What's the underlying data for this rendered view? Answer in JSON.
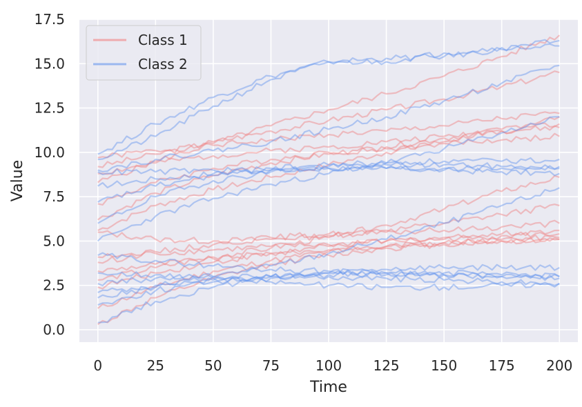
{
  "chart_data": {
    "type": "line",
    "xlabel": "Time",
    "ylabel": "Value",
    "xlim": [
      -8,
      208
    ],
    "ylim": [
      -0.7,
      17.5
    ],
    "x_ticks": [
      0,
      25,
      50,
      75,
      100,
      125,
      150,
      175,
      200
    ],
    "y_ticks": [
      0.0,
      2.5,
      5.0,
      7.5,
      10.0,
      12.5,
      15.0,
      17.5
    ],
    "y_tick_labels": [
      "0.0",
      "2.5",
      "5.0",
      "7.5",
      "10.0",
      "12.5",
      "15.0",
      "17.5"
    ],
    "grid": true,
    "legend_position": "top-left",
    "colors": {
      "background": "#eaeaf2",
      "grid": "#ffffff",
      "class1": "#f08080",
      "class2": "#6495ed"
    },
    "series": [
      {
        "name": "Class 1",
        "color": "#f08080",
        "x": [
          0,
          25,
          50,
          75,
          100,
          125,
          150,
          175,
          200
        ],
        "y": [
          9.7,
          10.1,
          10.4,
          10.7,
          11.0,
          11.2,
          11.5,
          11.9,
          12.2
        ]
      },
      {
        "name": "Class 1",
        "color": "#f08080",
        "x": [
          0,
          25,
          50,
          75,
          100,
          125,
          150,
          175,
          200
        ],
        "y": [
          8.8,
          9.4,
          9.8,
          10.1,
          10.3,
          10.6,
          10.9,
          11.2,
          11.4
        ]
      },
      {
        "name": "Class 1",
        "color": "#f08080",
        "x": [
          0,
          25,
          50,
          75,
          100,
          125,
          150,
          175,
          200
        ],
        "y": [
          9.2,
          9.9,
          10.6,
          11.2,
          11.8,
          12.4,
          13.0,
          13.7,
          14.5
        ]
      },
      {
        "name": "Class 1",
        "color": "#f08080",
        "x": [
          0,
          25,
          50,
          75,
          100,
          125,
          150,
          175,
          200
        ],
        "y": [
          7.1,
          8.3,
          9.1,
          9.6,
          10.0,
          10.2,
          10.5,
          10.7,
          10.9
        ]
      },
      {
        "name": "Class 1",
        "color": "#f08080",
        "x": [
          0,
          25,
          50,
          75,
          100,
          125,
          150,
          175,
          200
        ],
        "y": [
          8.3,
          9.5,
          10.5,
          11.5,
          12.4,
          13.3,
          14.3,
          15.4,
          16.6
        ]
      },
      {
        "name": "Class 1",
        "color": "#f08080",
        "x": [
          0,
          25,
          50,
          75,
          100,
          125,
          150,
          175,
          200
        ],
        "y": [
          6.2,
          7.7,
          8.7,
          9.4,
          9.9,
          10.3,
          10.8,
          11.2,
          11.6
        ]
      },
      {
        "name": "Class 1",
        "color": "#f08080",
        "x": [
          0,
          25,
          50,
          75,
          100,
          125,
          150,
          175,
          200
        ],
        "y": [
          5.6,
          7.0,
          7.9,
          8.6,
          9.3,
          10.0,
          10.6,
          11.3,
          12.0
        ]
      },
      {
        "name": "Class 1",
        "color": "#f08080",
        "x": [
          0,
          25,
          50,
          75,
          100,
          125,
          150,
          175,
          200
        ],
        "y": [
          4.1,
          4.3,
          4.5,
          4.7,
          4.8,
          5.0,
          5.1,
          5.3,
          5.4
        ]
      },
      {
        "name": "Class 1",
        "color": "#f08080",
        "x": [
          0,
          25,
          50,
          75,
          100,
          125,
          150,
          175,
          200
        ],
        "y": [
          3.3,
          3.7,
          4.0,
          4.3,
          4.5,
          4.7,
          4.9,
          5.0,
          5.1
        ]
      },
      {
        "name": "Class 1",
        "color": "#f08080",
        "x": [
          0,
          25,
          50,
          75,
          100,
          125,
          150,
          175,
          200
        ],
        "y": [
          2.4,
          3.2,
          3.8,
          4.3,
          4.7,
          5.0,
          5.2,
          5.4,
          5.6
        ]
      },
      {
        "name": "Class 1",
        "color": "#f08080",
        "x": [
          0,
          25,
          50,
          75,
          100,
          125,
          150,
          175,
          200
        ],
        "y": [
          1.2,
          2.4,
          3.3,
          3.9,
          4.4,
          4.7,
          4.9,
          5.1,
          5.2
        ]
      },
      {
        "name": "Class 1",
        "color": "#f08080",
        "x": [
          0,
          25,
          50,
          75,
          100,
          125,
          150,
          175,
          200
        ],
        "y": [
          0.3,
          1.8,
          2.9,
          3.7,
          4.2,
          4.6,
          4.8,
          5.0,
          5.1
        ]
      },
      {
        "name": "Class 1",
        "color": "#f08080",
        "x": [
          0,
          25,
          50,
          75,
          100,
          125,
          150,
          175,
          200
        ],
        "y": [
          5.5,
          5.1,
          5.0,
          5.1,
          5.3,
          5.6,
          6.0,
          6.5,
          7.0
        ]
      },
      {
        "name": "Class 1",
        "color": "#f08080",
        "x": [
          0,
          25,
          50,
          75,
          100,
          125,
          150,
          175,
          200
        ],
        "y": [
          2.8,
          3.5,
          4.1,
          4.6,
          5.2,
          5.9,
          6.8,
          7.8,
          8.6
        ]
      },
      {
        "name": "Class 1",
        "color": "#f08080",
        "x": [
          0,
          25,
          50,
          75,
          100,
          125,
          150,
          175,
          200
        ],
        "y": [
          3.8,
          4.4,
          4.8,
          5.2,
          5.4,
          5.5,
          5.6,
          5.8,
          6.0
        ]
      },
      {
        "name": "Class 2",
        "color": "#6495ed",
        "x": [
          0,
          25,
          50,
          75,
          100,
          125,
          150,
          175,
          200
        ],
        "y": [
          8.9,
          8.9,
          9.0,
          9.0,
          9.1,
          9.1,
          9.1,
          9.1,
          9.2
        ]
      },
      {
        "name": "Class 2",
        "color": "#6495ed",
        "x": [
          0,
          25,
          50,
          75,
          100,
          125,
          150,
          175,
          200
        ],
        "y": [
          8.1,
          8.5,
          8.8,
          9.0,
          9.1,
          9.1,
          9.0,
          8.9,
          8.8
        ]
      },
      {
        "name": "Class 2",
        "color": "#6495ed",
        "x": [
          0,
          25,
          50,
          75,
          100,
          125,
          150,
          175,
          200
        ],
        "y": [
          7.2,
          8.1,
          8.7,
          9.1,
          9.3,
          9.4,
          9.5,
          9.5,
          9.6
        ]
      },
      {
        "name": "Class 2",
        "color": "#6495ed",
        "x": [
          0,
          25,
          50,
          75,
          100,
          125,
          150,
          175,
          200
        ],
        "y": [
          6.0,
          7.5,
          8.4,
          8.9,
          9.2,
          9.3,
          9.3,
          9.2,
          9.1
        ]
      },
      {
        "name": "Class 2",
        "color": "#6495ed",
        "x": [
          0,
          25,
          50,
          75,
          100,
          125,
          150,
          175,
          200
        ],
        "y": [
          9.9,
          11.6,
          13.1,
          14.3,
          15.1,
          15.3,
          15.4,
          15.8,
          16.3
        ]
      },
      {
        "name": "Class 2",
        "color": "#6495ed",
        "x": [
          0,
          25,
          50,
          75,
          100,
          125,
          150,
          175,
          200
        ],
        "y": [
          9.6,
          10.9,
          12.6,
          14.1,
          15.1,
          15.1,
          15.6,
          15.9,
          16.0
        ]
      },
      {
        "name": "Class 2",
        "color": "#6495ed",
        "x": [
          0,
          25,
          50,
          75,
          100,
          125,
          150,
          175,
          200
        ],
        "y": [
          9.0,
          9.6,
          10.1,
          10.6,
          11.3,
          12.0,
          12.9,
          13.9,
          14.9
        ]
      },
      {
        "name": "Class 2",
        "color": "#6495ed",
        "x": [
          0,
          25,
          50,
          75,
          100,
          125,
          150,
          175,
          200
        ],
        "y": [
          5.0,
          6.4,
          7.4,
          8.2,
          8.8,
          9.4,
          10.2,
          11.1,
          12.0
        ]
      },
      {
        "name": "Class 2",
        "color": "#6495ed",
        "x": [
          0,
          25,
          50,
          75,
          100,
          125,
          150,
          175,
          200
        ],
        "y": [
          2.1,
          2.5,
          2.8,
          3.0,
          3.1,
          3.1,
          3.1,
          3.0,
          3.0
        ]
      },
      {
        "name": "Class 2",
        "color": "#6495ed",
        "x": [
          0,
          25,
          50,
          75,
          100,
          125,
          150,
          175,
          200
        ],
        "y": [
          1.4,
          2.2,
          2.7,
          3.0,
          3.2,
          3.2,
          3.2,
          3.1,
          3.0
        ]
      },
      {
        "name": "Class 2",
        "color": "#6495ed",
        "x": [
          0,
          25,
          50,
          75,
          100,
          125,
          150,
          175,
          200
        ],
        "y": [
          3.2,
          3.1,
          2.9,
          2.7,
          2.5,
          2.4,
          2.4,
          2.5,
          2.6
        ]
      },
      {
        "name": "Class 2",
        "color": "#6495ed",
        "x": [
          0,
          25,
          50,
          75,
          100,
          125,
          150,
          175,
          200
        ],
        "y": [
          0.4,
          1.6,
          2.4,
          2.9,
          3.2,
          3.4,
          3.5,
          3.5,
          3.5
        ]
      },
      {
        "name": "Class 2",
        "color": "#6495ed",
        "x": [
          0,
          25,
          50,
          75,
          100,
          125,
          150,
          175,
          200
        ],
        "y": [
          2.6,
          2.9,
          3.0,
          3.0,
          3.0,
          2.9,
          2.8,
          2.7,
          2.6
        ]
      },
      {
        "name": "Class 2",
        "color": "#6495ed",
        "x": [
          0,
          25,
          50,
          75,
          100,
          125,
          150,
          175,
          200
        ],
        "y": [
          4.2,
          3.9,
          3.6,
          3.4,
          3.3,
          3.2,
          3.1,
          3.0,
          2.9
        ]
      },
      {
        "name": "Class 2",
        "color": "#6495ed",
        "x": [
          0,
          25,
          50,
          75,
          100,
          125,
          150,
          175,
          200
        ],
        "y": [
          1.8,
          2.4,
          3.0,
          3.6,
          4.3,
          5.1,
          6.0,
          7.0,
          8.0
        ]
      }
    ]
  },
  "legend": {
    "entries": [
      {
        "label": "Class 1",
        "color": "#f08080"
      },
      {
        "label": "Class 2",
        "color": "#6495ed"
      }
    ]
  }
}
